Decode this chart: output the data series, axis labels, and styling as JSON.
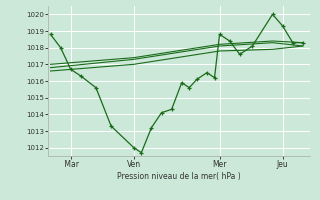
{
  "background_color": "#cce8d8",
  "grid_color": "#ffffff",
  "line_color": "#1a6b1a",
  "xlabel": "Pression niveau de la mer( hPa )",
  "xtick_labels": [
    " Mar",
    "Ven",
    "Mer",
    "Jeu"
  ],
  "xtick_positions": [
    0.08,
    0.33,
    0.67,
    0.92
  ],
  "ylim": [
    1011.5,
    1020.5
  ],
  "yticks": [
    1012,
    1013,
    1014,
    1015,
    1016,
    1017,
    1018,
    1019,
    1020
  ],
  "line1_x": [
    0.0,
    0.04,
    0.08,
    0.12,
    0.18,
    0.24,
    0.33,
    0.36,
    0.4,
    0.44,
    0.48,
    0.52,
    0.55,
    0.58,
    0.62,
    0.65,
    0.67,
    0.71,
    0.75,
    0.8,
    0.88,
    0.92,
    0.96,
    1.0
  ],
  "line1_y": [
    1018.8,
    1018.0,
    1016.7,
    1016.3,
    1015.6,
    1013.3,
    1012.0,
    1011.7,
    1013.2,
    1014.1,
    1014.3,
    1015.9,
    1015.6,
    1016.1,
    1016.5,
    1016.2,
    1018.8,
    1018.4,
    1017.6,
    1018.1,
    1020.0,
    1019.3,
    1018.3,
    1018.3
  ],
  "line2_x": [
    0.0,
    0.33,
    0.67,
    0.88,
    1.0
  ],
  "line2_y": [
    1017.0,
    1017.4,
    1018.2,
    1018.4,
    1018.3
  ],
  "line3_x": [
    0.0,
    0.33,
    0.67,
    0.88,
    1.0
  ],
  "line3_y": [
    1016.8,
    1017.3,
    1018.1,
    1018.3,
    1018.1
  ],
  "line4_x": [
    0.0,
    0.33,
    0.67,
    0.88,
    1.0
  ],
  "line4_y": [
    1016.6,
    1017.0,
    1017.8,
    1017.9,
    1018.1
  ],
  "vline_positions": [
    0.08,
    0.33,
    0.67,
    0.92
  ]
}
